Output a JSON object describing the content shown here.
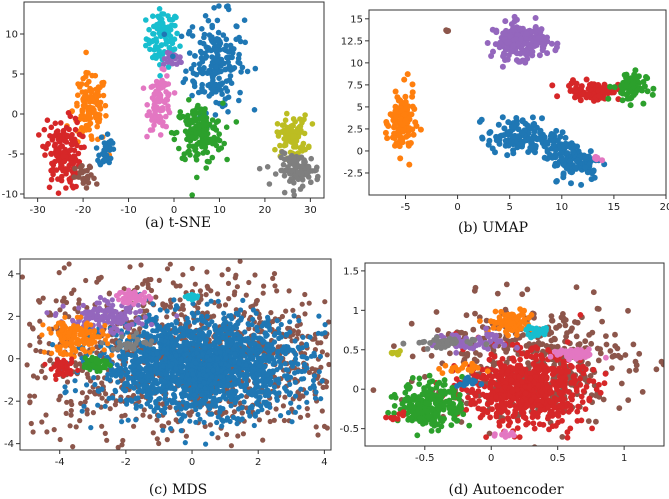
{
  "figure": {
    "captions": [
      "(a) t-SNE",
      "(b) UMAP",
      "(c) MDS",
      "(d) Autoencoder"
    ]
  },
  "palette": {
    "blue": "#1f77b4",
    "orange": "#ff7f0e",
    "green": "#2ca02c",
    "red": "#d62728",
    "purple": "#9467bd",
    "brown": "#8c564b",
    "pink": "#e377c2",
    "gray": "#7f7f7f",
    "olive": "#bcbd22",
    "cyan": "#17becf"
  },
  "chart_data": [
    {
      "type": "scatter",
      "title": "(a) t-SNE",
      "xlim": [
        -33,
        33
      ],
      "ylim": [
        -10.5,
        14
      ],
      "xticks": [
        -30,
        -20,
        -10,
        0,
        10,
        20,
        30
      ],
      "yticks": [
        -10,
        -5,
        0,
        5,
        10
      ],
      "clusters": [
        {
          "color": "cyan",
          "cx": -2.5,
          "cy": 9.5,
          "sx": 1.8,
          "sy": 1.8,
          "n": 90
        },
        {
          "color": "purple",
          "cx": 0,
          "cy": 6.8,
          "sx": 1.2,
          "sy": 0.4,
          "n": 20
        },
        {
          "color": "blue",
          "cx": 9,
          "cy": 6.5,
          "sx": 3.2,
          "sy": 3.0,
          "n": 200
        },
        {
          "color": "orange",
          "cx": -18.5,
          "cy": 0.5,
          "sx": 1.9,
          "sy": 2.2,
          "n": 120
        },
        {
          "color": "pink",
          "cx": -3,
          "cy": 1.5,
          "sx": 1.3,
          "sy": 1.7,
          "n": 90
        },
        {
          "color": "green",
          "cx": 5.5,
          "cy": -2.5,
          "sx": 2.6,
          "sy": 1.9,
          "n": 160
        },
        {
          "color": "blue",
          "cx": -15,
          "cy": -4.5,
          "sx": 0.7,
          "sy": 1.1,
          "n": 35
        },
        {
          "color": "red",
          "cx": -24.5,
          "cy": -5,
          "sx": 2.0,
          "sy": 2.2,
          "n": 150
        },
        {
          "color": "brown",
          "cx": -19.5,
          "cy": -8,
          "sx": 1.1,
          "sy": 0.8,
          "n": 25
        },
        {
          "color": "olive",
          "cx": 26,
          "cy": -2.8,
          "sx": 1.7,
          "sy": 1.3,
          "n": 90
        },
        {
          "color": "gray",
          "cx": 27.5,
          "cy": -7,
          "sx": 2.3,
          "sy": 1.0,
          "n": 100
        }
      ]
    },
    {
      "type": "scatter",
      "title": "(b) UMAP",
      "xlim": [
        -8.5,
        20
      ],
      "ylim": [
        -5,
        16
      ],
      "xticks": [
        -5,
        0,
        5,
        10,
        15,
        20
      ],
      "yticks": [
        -2.5,
        0.0,
        2.5,
        5.0,
        7.5,
        10.0,
        12.5,
        15.0
      ],
      "clusters": [
        {
          "color": "purple",
          "cx": 6,
          "cy": 12.5,
          "sx": 1.3,
          "sy": 1.0,
          "n": 180
        },
        {
          "color": "brown",
          "cx": -1,
          "cy": 13.5,
          "sx": 0.08,
          "sy": 0.08,
          "n": 3
        },
        {
          "color": "orange",
          "cx": -5.3,
          "cy": 3.2,
          "sx": 0.6,
          "sy": 1.9,
          "n": 110
        },
        {
          "color": "red",
          "cx": 13,
          "cy": 6.8,
          "sx": 1.3,
          "sy": 0.5,
          "n": 80
        },
        {
          "color": "green",
          "cx": 16.5,
          "cy": 7.3,
          "sx": 0.8,
          "sy": 0.9,
          "n": 70
        },
        {
          "color": "blue",
          "cx": 5.5,
          "cy": 1.7,
          "sx": 1.3,
          "sy": 1.0,
          "n": 100
        },
        {
          "color": "blue",
          "cx": 9,
          "cy": 0.8,
          "sx": 1.1,
          "sy": 0.7,
          "n": 60
        },
        {
          "color": "blue",
          "cx": 11.5,
          "cy": -1.3,
          "sx": 1.2,
          "sy": 1.0,
          "n": 100
        },
        {
          "color": "pink",
          "cx": 13.3,
          "cy": -0.8,
          "sx": 0.2,
          "sy": 0.12,
          "n": 8
        }
      ]
    },
    {
      "type": "scatter",
      "title": "(c) MDS",
      "xlim": [
        -5.2,
        4.2
      ],
      "ylim": [
        -4.3,
        4.7
      ],
      "xticks": [
        -4,
        -2,
        0,
        2,
        4
      ],
      "yticks": [
        -4,
        -2,
        0,
        2,
        4
      ],
      "clusters": [
        {
          "color": "brown",
          "cx": -0.2,
          "cy": 0.1,
          "sx": 2.5,
          "sy": 2.0,
          "n": 1100
        },
        {
          "color": "blue",
          "cx": 0.3,
          "cy": -0.3,
          "sx": 1.5,
          "sy": 1.1,
          "n": 1800
        },
        {
          "color": "purple",
          "cx": -2.6,
          "cy": 1.9,
          "sx": 0.6,
          "sy": 0.35,
          "n": 140
        },
        {
          "color": "orange",
          "cx": -3.5,
          "cy": 1.0,
          "sx": 0.45,
          "sy": 0.4,
          "n": 150
        },
        {
          "color": "pink",
          "cx": -1.8,
          "cy": 2.9,
          "sx": 0.25,
          "sy": 0.15,
          "n": 60
        },
        {
          "color": "cyan",
          "cx": 0,
          "cy": 2.9,
          "sx": 0.1,
          "sy": 0.08,
          "n": 20
        },
        {
          "color": "gray",
          "cx": -1.8,
          "cy": 0.7,
          "sx": 0.3,
          "sy": 0.2,
          "n": 30
        },
        {
          "color": "green",
          "cx": -2.9,
          "cy": -0.2,
          "sx": 0.2,
          "sy": 0.2,
          "n": 45
        },
        {
          "color": "red",
          "cx": -3.9,
          "cy": -0.5,
          "sx": 0.18,
          "sy": 0.2,
          "n": 40
        }
      ]
    },
    {
      "type": "scatter",
      "title": "(d) Autoencoder",
      "xlim": [
        -0.95,
        1.3
      ],
      "ylim": [
        -0.72,
        1.6
      ],
      "xticks": [
        -0.5,
        0.0,
        0.5,
        1.0
      ],
      "yticks": [
        -0.5,
        0.0,
        0.5,
        1.0,
        1.5
      ],
      "clusters": [
        {
          "color": "brown",
          "cx": 0.3,
          "cy": 0.35,
          "sx": 0.38,
          "sy": 0.38,
          "n": 420
        },
        {
          "color": "red",
          "cx": 0.25,
          "cy": 0.0,
          "sx": 0.22,
          "sy": 0.22,
          "n": 650
        },
        {
          "color": "green",
          "cx": -0.45,
          "cy": -0.2,
          "sx": 0.12,
          "sy": 0.15,
          "n": 230
        },
        {
          "color": "orange",
          "cx": 0.15,
          "cy": 0.85,
          "sx": 0.08,
          "sy": 0.07,
          "n": 90
        },
        {
          "color": "cyan",
          "cx": 0.35,
          "cy": 0.73,
          "sx": 0.04,
          "sy": 0.04,
          "n": 30
        },
        {
          "color": "pink",
          "cx": 0.62,
          "cy": 0.44,
          "sx": 0.08,
          "sy": 0.03,
          "n": 60
        },
        {
          "color": "purple",
          "cx": -0.13,
          "cy": 0.6,
          "sx": 0.15,
          "sy": 0.07,
          "n": 50
        },
        {
          "color": "gray",
          "cx": -0.38,
          "cy": 0.58,
          "sx": 0.12,
          "sy": 0.04,
          "n": 35
        },
        {
          "color": "olive",
          "cx": -0.72,
          "cy": 0.46,
          "sx": 0.03,
          "sy": 0.02,
          "n": 8
        },
        {
          "color": "orange",
          "cx": -0.25,
          "cy": 0.26,
          "sx": 0.08,
          "sy": 0.03,
          "n": 20
        },
        {
          "color": "blue",
          "cx": -0.18,
          "cy": 0.08,
          "sx": 0.04,
          "sy": 0.04,
          "n": 15
        },
        {
          "color": "red",
          "cx": -0.72,
          "cy": -0.35,
          "sx": 0.03,
          "sy": 0.03,
          "n": 8
        },
        {
          "color": "pink",
          "cx": 0.1,
          "cy": -0.58,
          "sx": 0.04,
          "sy": 0.02,
          "n": 10
        }
      ]
    }
  ]
}
